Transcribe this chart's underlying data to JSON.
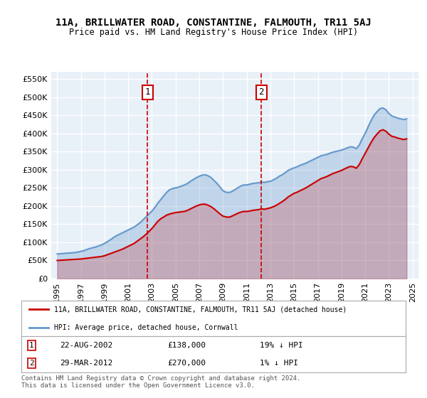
{
  "title": "11A, BRILLWATER ROAD, CONSTANTINE, FALMOUTH, TR11 5AJ",
  "subtitle": "Price paid vs. HM Land Registry's House Price Index (HPI)",
  "legend_line1": "11A, BRILLWATER ROAD, CONSTANTINE, FALMOUTH, TR11 5AJ (detached house)",
  "legend_line2": "HPI: Average price, detached house, Cornwall",
  "footnote": "Contains HM Land Registry data © Crown copyright and database right 2024.\nThis data is licensed under the Open Government Licence v3.0.",
  "transaction1_date": "22-AUG-2002",
  "transaction1_price": "£138,000",
  "transaction1_hpi": "19% ↓ HPI",
  "transaction2_date": "29-MAR-2012",
  "transaction2_price": "£270,000",
  "transaction2_hpi": "1% ↓ HPI",
  "ylim": [
    0,
    570000
  ],
  "yticks": [
    0,
    50000,
    100000,
    150000,
    200000,
    250000,
    300000,
    350000,
    400000,
    450000,
    500000,
    550000
  ],
  "ytick_labels": [
    "£0",
    "£50K",
    "£100K",
    "£150K",
    "£200K",
    "£250K",
    "£300K",
    "£350K",
    "£400K",
    "£450K",
    "£500K",
    "£550K"
  ],
  "background_color": "#e8f0f8",
  "plot_bg_color": "#e8f0f8",
  "grid_color": "#ffffff",
  "red_color": "#cc0000",
  "blue_color": "#6699cc",
  "marker1_x": 2002.64,
  "marker1_y": 138000,
  "marker2_x": 2012.24,
  "marker2_y": 270000,
  "hpi_data_x": [
    1995.0,
    1995.25,
    1995.5,
    1995.75,
    1996.0,
    1996.25,
    1996.5,
    1996.75,
    1997.0,
    1997.25,
    1997.5,
    1997.75,
    1998.0,
    1998.25,
    1998.5,
    1998.75,
    1999.0,
    1999.25,
    1999.5,
    1999.75,
    2000.0,
    2000.25,
    2000.5,
    2000.75,
    2001.0,
    2001.25,
    2001.5,
    2001.75,
    2002.0,
    2002.25,
    2002.5,
    2002.75,
    2003.0,
    2003.25,
    2003.5,
    2003.75,
    2004.0,
    2004.25,
    2004.5,
    2004.75,
    2005.0,
    2005.25,
    2005.5,
    2005.75,
    2006.0,
    2006.25,
    2006.5,
    2006.75,
    2007.0,
    2007.25,
    2007.5,
    2007.75,
    2008.0,
    2008.25,
    2008.5,
    2008.75,
    2009.0,
    2009.25,
    2009.5,
    2009.75,
    2010.0,
    2010.25,
    2010.5,
    2010.75,
    2011.0,
    2011.25,
    2011.5,
    2011.75,
    2012.0,
    2012.25,
    2012.5,
    2012.75,
    2013.0,
    2013.25,
    2013.5,
    2013.75,
    2014.0,
    2014.25,
    2014.5,
    2014.75,
    2015.0,
    2015.25,
    2015.5,
    2015.75,
    2016.0,
    2016.25,
    2016.5,
    2016.75,
    2017.0,
    2017.25,
    2017.5,
    2017.75,
    2018.0,
    2018.25,
    2018.5,
    2018.75,
    2019.0,
    2019.25,
    2019.5,
    2019.75,
    2020.0,
    2020.25,
    2020.5,
    2020.75,
    2021.0,
    2021.25,
    2021.5,
    2021.75,
    2022.0,
    2022.25,
    2022.5,
    2022.75,
    2023.0,
    2023.25,
    2023.5,
    2023.75,
    2024.0,
    2024.25,
    2024.5
  ],
  "hpi_data_y": [
    68000,
    68500,
    69000,
    70000,
    70500,
    71000,
    72000,
    73000,
    75000,
    77000,
    80000,
    83000,
    85000,
    87000,
    90000,
    93000,
    97000,
    102000,
    107000,
    113000,
    118000,
    122000,
    126000,
    130000,
    134000,
    138000,
    142000,
    148000,
    154000,
    162000,
    170000,
    178000,
    186000,
    196000,
    208000,
    218000,
    228000,
    238000,
    245000,
    248000,
    250000,
    252000,
    255000,
    258000,
    262000,
    268000,
    273000,
    278000,
    282000,
    285000,
    286000,
    283000,
    278000,
    270000,
    262000,
    252000,
    242000,
    238000,
    237000,
    240000,
    245000,
    250000,
    255000,
    258000,
    258000,
    260000,
    262000,
    263000,
    264000,
    266000,
    265000,
    267000,
    268000,
    272000,
    276000,
    282000,
    286000,
    292000,
    298000,
    302000,
    305000,
    308000,
    312000,
    315000,
    318000,
    322000,
    326000,
    330000,
    334000,
    338000,
    340000,
    342000,
    345000,
    348000,
    350000,
    352000,
    354000,
    357000,
    360000,
    363000,
    362000,
    358000,
    368000,
    385000,
    400000,
    418000,
    435000,
    450000,
    460000,
    468000,
    470000,
    465000,
    455000,
    448000,
    445000,
    442000,
    440000,
    438000,
    440000
  ],
  "red_data_x": [
    1995.0,
    1995.25,
    1995.5,
    1995.75,
    1996.0,
    1996.25,
    1996.5,
    1996.75,
    1997.0,
    1997.25,
    1997.5,
    1997.75,
    1998.0,
    1998.25,
    1998.5,
    1998.75,
    1999.0,
    1999.25,
    1999.5,
    1999.75,
    2000.0,
    2000.25,
    2000.5,
    2000.75,
    2001.0,
    2001.25,
    2001.5,
    2001.75,
    2002.0,
    2002.25,
    2002.5,
    2002.75,
    2003.0,
    2003.25,
    2003.5,
    2003.75,
    2004.0,
    2004.25,
    2004.5,
    2004.75,
    2005.0,
    2005.25,
    2005.5,
    2005.75,
    2006.0,
    2006.25,
    2006.5,
    2006.75,
    2007.0,
    2007.25,
    2007.5,
    2007.75,
    2008.0,
    2008.25,
    2008.5,
    2008.75,
    2009.0,
    2009.25,
    2009.5,
    2009.75,
    2010.0,
    2010.25,
    2010.5,
    2010.75,
    2011.0,
    2011.25,
    2011.5,
    2011.75,
    2012.0,
    2012.25,
    2012.5,
    2012.75,
    2013.0,
    2013.25,
    2013.5,
    2013.75,
    2014.0,
    2014.25,
    2014.5,
    2014.75,
    2015.0,
    2015.25,
    2015.5,
    2015.75,
    2016.0,
    2016.25,
    2016.5,
    2016.75,
    2017.0,
    2017.25,
    2017.5,
    2017.75,
    2018.0,
    2018.25,
    2018.5,
    2018.75,
    2019.0,
    2019.25,
    2019.5,
    2019.75,
    2020.0,
    2020.25,
    2020.5,
    2020.75,
    2021.0,
    2021.25,
    2021.5,
    2021.75,
    2022.0,
    2022.25,
    2022.5,
    2022.75,
    2023.0,
    2023.25,
    2023.5,
    2023.75,
    2024.0,
    2024.25,
    2024.5
  ],
  "red_data_y": [
    50000,
    50500,
    51000,
    51500,
    52000,
    52500,
    53000,
    53500,
    54000,
    55000,
    56000,
    57000,
    58000,
    59000,
    60000,
    61000,
    63000,
    66000,
    69000,
    72000,
    75000,
    78000,
    81000,
    85000,
    89000,
    93000,
    97000,
    103000,
    109000,
    115000,
    122000,
    130000,
    138000,
    148000,
    158000,
    165000,
    170000,
    175000,
    178000,
    180000,
    182000,
    183000,
    184000,
    185000,
    188000,
    192000,
    196000,
    200000,
    203000,
    205000,
    205000,
    202000,
    198000,
    192000,
    185000,
    178000,
    172000,
    170000,
    169000,
    172000,
    176000,
    180000,
    183000,
    185000,
    185000,
    186000,
    188000,
    189000,
    190000,
    192000,
    191000,
    193000,
    195000,
    198000,
    202000,
    207000,
    212000,
    218000,
    225000,
    230000,
    235000,
    238000,
    242000,
    246000,
    250000,
    255000,
    260000,
    265000,
    270000,
    275000,
    278000,
    281000,
    285000,
    289000,
    292000,
    295000,
    298000,
    302000,
    306000,
    309000,
    308000,
    304000,
    314000,
    330000,
    345000,
    360000,
    375000,
    388000,
    398000,
    407000,
    410000,
    406000,
    398000,
    392000,
    390000,
    387000,
    385000,
    383000,
    385000
  ],
  "xticks": [
    1995,
    1997,
    1999,
    2001,
    2003,
    2005,
    2007,
    2009,
    2011,
    2013,
    2015,
    2017,
    2019,
    2021,
    2023,
    2025
  ]
}
